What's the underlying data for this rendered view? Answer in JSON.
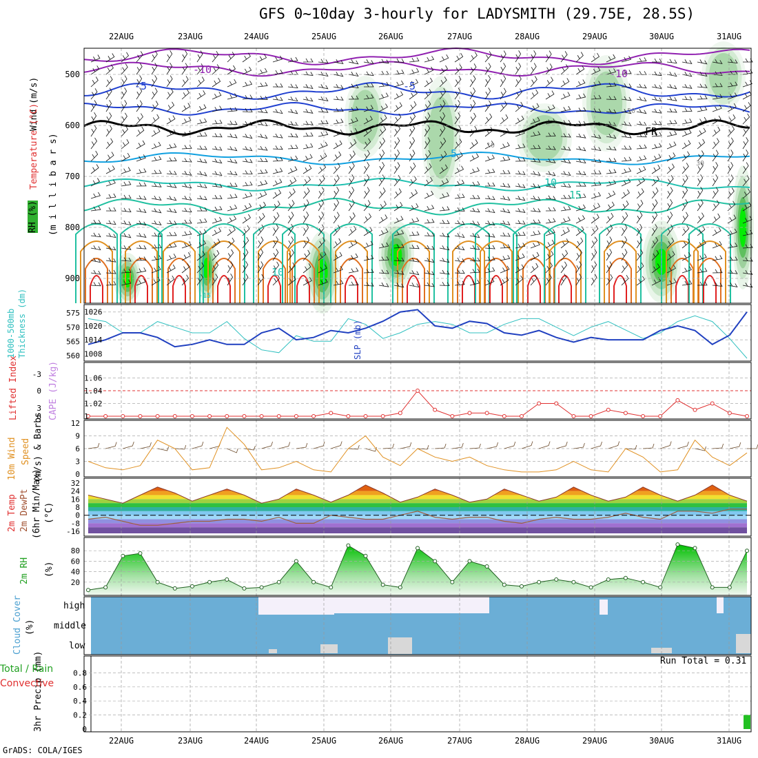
{
  "title": "GFS 0~10day 3-hourly for LADYSMITH (29.75E, 28.5S)",
  "dates": [
    "22AUG",
    "23AUG",
    "24AUG",
    "25AUG",
    "26AUG",
    "27AUG",
    "28AUG",
    "29AUG",
    "30AUG",
    "31AUG"
  ],
  "credit": "GrADS: COLA/IGES",
  "colors": {
    "rh_green": "#00ee00",
    "temp_blue": "#2040d0",
    "temp_cyan": "#10a0e0",
    "temp_orange": "#e09020",
    "temp_red": "#e02020",
    "slp": "#2040c0",
    "thickness": "#30c0c0",
    "wind": "#e09020",
    "cloud": "#6baed6",
    "precip": "#22c022"
  },
  "panels": {
    "upper": {
      "ylabels": [
        "(m i l l i b a r s)",
        "Wind (m/s)",
        "Temperature (°C)",
        "RH (%)"
      ],
      "yticks": [
        "500",
        "600",
        "700",
        "800",
        "900"
      ],
      "contour_labels": [
        "-10",
        "-5",
        "-5",
        "FR",
        "5",
        "10",
        "15",
        "10",
        "-10",
        "50",
        "10",
        "30",
        "-15"
      ]
    },
    "slp": {
      "ylabels": [
        "1000-500mb",
        "Thickness (dm)",
        "SLP (mb)"
      ],
      "thickness_ticks": [
        "575",
        "570",
        "565",
        "560"
      ],
      "slp_ticks": [
        "1026",
        "1020",
        "1014",
        "1008"
      ]
    },
    "cape": {
      "ylabels": [
        "Lifted Index",
        "CAPE (J/kg)"
      ],
      "li_ticks": [
        "-3",
        "0",
        "3",
        "6"
      ],
      "cape_ticks": [
        "1.06",
        "1.04",
        "1.02",
        "1"
      ]
    },
    "wind10": {
      "ylabels": [
        "10m Wind",
        "Speed",
        "(m/s) & Barbs"
      ],
      "ticks": [
        "12",
        "9",
        "6",
        "3",
        "0"
      ]
    },
    "temp2m": {
      "ylabels": [
        "2m Temp",
        "2m DewPt",
        "(6hr Min/Max)",
        "(°C)"
      ],
      "ticks": [
        "32",
        "24",
        "16",
        "8",
        "0",
        "-8",
        "-16"
      ]
    },
    "rh2m": {
      "ylabels": [
        "2m RH",
        "(%)"
      ],
      "ticks": [
        "80",
        "60",
        "40",
        "20"
      ]
    },
    "cloud": {
      "ylabels": [
        "Cloud Cover",
        "(%)"
      ],
      "levels": [
        "high",
        "middle",
        "low"
      ]
    },
    "precip": {
      "ylabels": [
        "3hr Precip (mm)",
        "Total / Rain",
        "Convective"
      ],
      "ticks": [
        "0.8",
        "0.6",
        "0.4",
        "0.2",
        "0"
      ],
      "run_total": "Run Total = 0.31"
    }
  },
  "chart_data": [
    {
      "type": "line",
      "title": "SLP (mb)",
      "x": [
        "21AUG18",
        "22AUG00",
        "22AUG06",
        "22AUG12",
        "22AUG18",
        "23AUG00",
        "23AUG06",
        "23AUG12",
        "23AUG18",
        "24AUG00",
        "24AUG06",
        "24AUG12",
        "24AUG18",
        "25AUG00",
        "25AUG06",
        "25AUG12",
        "25AUG18",
        "26AUG00",
        "26AUG06",
        "26AUG12",
        "26AUG18",
        "27AUG00",
        "27AUG06",
        "27AUG12",
        "27AUG18",
        "28AUG00",
        "28AUG06",
        "28AUG12",
        "28AUG18",
        "29AUG00",
        "29AUG06",
        "29AUG12",
        "29AUG18",
        "30AUG00",
        "30AUG06",
        "30AUG12",
        "30AUG18",
        "31AUG00",
        "31AUG06"
      ],
      "series": [
        {
          "name": "SLP",
          "values": [
            1012,
            1014,
            1017,
            1017,
            1015,
            1011,
            1012,
            1014,
            1012,
            1012,
            1017,
            1019,
            1014,
            1015,
            1018,
            1017,
            1019,
            1022,
            1026,
            1027,
            1020,
            1019,
            1022,
            1021,
            1017,
            1016,
            1018,
            1015,
            1013,
            1015,
            1014,
            1014,
            1014,
            1018,
            1020,
            1018,
            1012,
            1016,
            1026
          ]
        }
      ],
      "ylim": [
        1006,
        1028
      ]
    },
    {
      "type": "line",
      "title": "Thickness (dm)",
      "series": [
        {
          "name": "Thickness",
          "values": [
            573,
            572,
            568,
            568,
            572,
            570,
            568,
            568,
            572,
            566,
            562,
            561,
            567,
            565,
            565,
            573,
            571,
            566,
            568,
            571,
            572,
            571,
            568,
            568,
            571,
            573,
            573,
            570,
            567,
            570,
            572,
            569,
            566,
            568,
            572,
            574,
            572,
            566,
            559
          ]
        }
      ],
      "ylim": [
        559,
        577
      ]
    },
    {
      "type": "line",
      "title": "CAPE (J/kg)",
      "series": [
        {
          "name": "CAPE",
          "values": [
            1,
            1,
            1,
            1,
            1,
            1,
            1,
            1,
            1,
            1,
            1,
            1,
            1,
            1,
            1.005,
            1,
            1,
            1,
            1.005,
            1.04,
            1.01,
            1,
            1.005,
            1.005,
            1,
            1,
            1.02,
            1.02,
            1,
            1,
            1.01,
            1.005,
            1,
            1,
            1.025,
            1.01,
            1.02,
            1.005,
            1
          ]
        }
      ],
      "ylim": [
        1,
        1.08
      ]
    },
    {
      "type": "line",
      "title": "10m Wind Speed (m/s)",
      "series": [
        {
          "name": "Wind",
          "values": [
            3,
            1.5,
            1,
            2,
            8,
            6,
            1,
            1.5,
            11,
            7,
            1,
            1.5,
            3,
            1,
            0.5,
            6,
            9,
            4,
            2,
            6,
            4,
            3,
            4,
            2,
            1,
            0.5,
            0.5,
            1,
            3,
            1,
            0.5,
            6,
            4,
            0.5,
            1,
            8,
            4,
            2,
            5
          ]
        }
      ],
      "ylim": [
        0,
        12
      ]
    },
    {
      "type": "area",
      "title": "2m Temp (°C)",
      "series": [
        {
          "name": "2m Temp",
          "values": [
            20,
            16,
            12,
            20,
            28,
            22,
            14,
            20,
            26,
            20,
            12,
            16,
            26,
            20,
            13,
            20,
            30,
            22,
            13,
            18,
            26,
            20,
            13,
            16,
            26,
            20,
            14,
            18,
            28,
            20,
            14,
            18,
            28,
            20,
            14,
            20,
            30,
            20,
            14
          ]
        },
        {
          "name": "2m DewPt",
          "values": [
            -4,
            -2,
            -6,
            -10,
            -10,
            -8,
            -6,
            -6,
            -4,
            -4,
            -6,
            -2,
            -8,
            -8,
            0,
            -2,
            -4,
            -4,
            0,
            4,
            -2,
            -4,
            -2,
            -2,
            -6,
            -8,
            -4,
            -2,
            -4,
            -4,
            -2,
            2,
            -2,
            -4,
            4,
            4,
            2,
            6,
            6
          ]
        }
      ],
      "ylim": [
        -18,
        34
      ]
    },
    {
      "type": "area",
      "title": "2m RH (%)",
      "series": [
        {
          "name": "2m RH",
          "values": [
            5,
            10,
            70,
            75,
            20,
            8,
            12,
            20,
            25,
            8,
            10,
            20,
            60,
            20,
            10,
            90,
            70,
            15,
            10,
            85,
            60,
            20,
            60,
            50,
            15,
            12,
            20,
            25,
            20,
            10,
            25,
            28,
            20,
            10,
            92,
            85,
            10,
            10,
            80
          ]
        }
      ],
      "ylim": [
        0,
        100
      ]
    },
    {
      "type": "bar",
      "title": "3hr Precip (mm)",
      "series": [
        {
          "name": "Total",
          "values": [
            0,
            0,
            0,
            0,
            0,
            0,
            0,
            0,
            0,
            0,
            0,
            0,
            0,
            0,
            0,
            0,
            0,
            0,
            0,
            0,
            0,
            0,
            0,
            0,
            0,
            0,
            0,
            0,
            0,
            0,
            0,
            0,
            0,
            0,
            0,
            0,
            0,
            0,
            0.2
          ]
        }
      ],
      "ylim": [
        0,
        1
      ]
    }
  ]
}
